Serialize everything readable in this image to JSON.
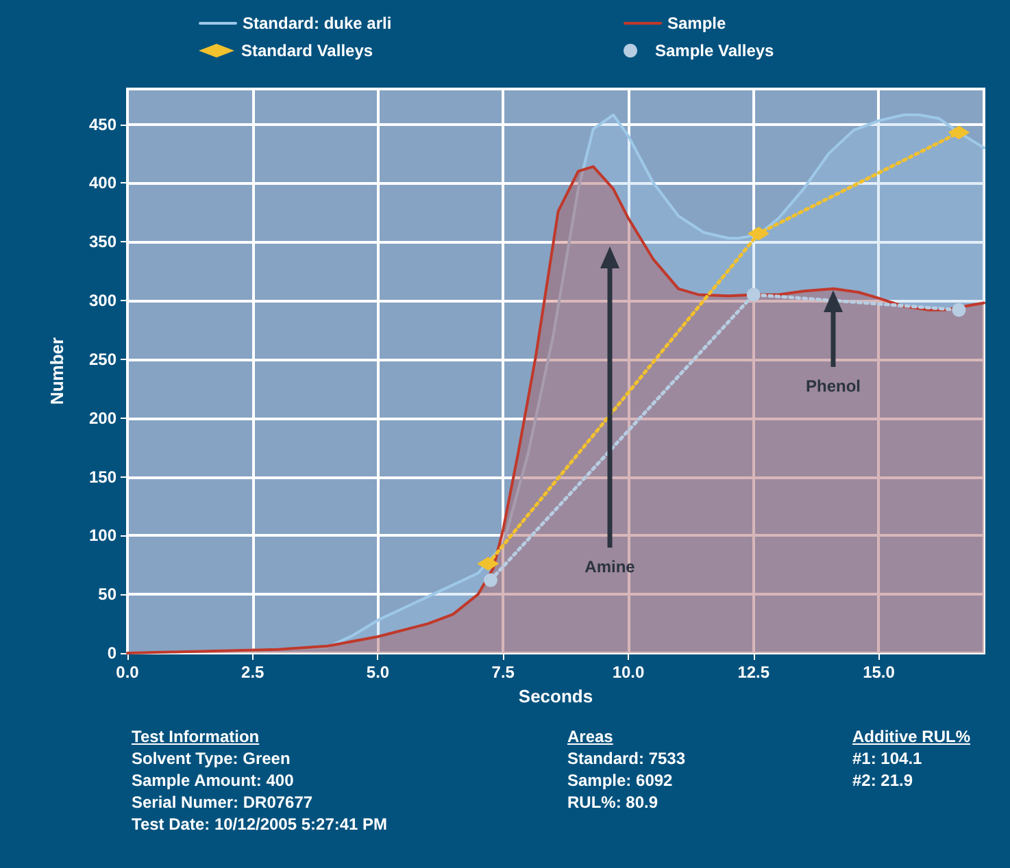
{
  "chart_data": {
    "type": "area",
    "xlabel": "Seconds",
    "ylabel": "Number",
    "xlim": [
      0,
      17.1
    ],
    "xticks": [
      {
        "value": 0,
        "label": "0.0"
      },
      {
        "value": 2.5,
        "label": "2.5"
      },
      {
        "value": 5,
        "label": "5.0"
      },
      {
        "value": 7.5,
        "label": "7.5"
      },
      {
        "value": 10,
        "label": "10.0"
      },
      {
        "value": 12.5,
        "label": "12.5"
      },
      {
        "value": 15,
        "label": "15.0"
      }
    ],
    "ylim": [
      0,
      480
    ],
    "yticks": [
      0,
      50,
      100,
      150,
      200,
      250,
      300,
      350,
      400,
      450
    ],
    "grid": true,
    "legend": "top",
    "series": [
      {
        "name": "Standard: duke arli",
        "color": "#9ec8e8",
        "x": [
          0,
          1,
          2,
          3,
          4,
          4.5,
          5,
          5.5,
          6,
          6.5,
          7,
          7.5,
          8,
          8.5,
          9,
          9.3,
          9.7,
          10,
          10.5,
          11,
          11.5,
          12,
          12.2,
          12.6,
          13,
          13.5,
          14,
          14.5,
          15,
          15.5,
          15.8,
          16.2,
          16.6,
          17.1
        ],
        "values": [
          0,
          1,
          2,
          3,
          5,
          15,
          28,
          38,
          48,
          58,
          68,
          92,
          170,
          270,
          395,
          446,
          458,
          440,
          400,
          372,
          358,
          353,
          353,
          356,
          370,
          395,
          425,
          445,
          453,
          458,
          458,
          455,
          443,
          430
        ]
      },
      {
        "name": "Sample",
        "color": "#c0392b",
        "x": [
          0,
          1,
          2,
          3,
          4,
          5,
          6,
          6.5,
          7,
          7.3,
          7.5,
          7.8,
          8.15,
          8.6,
          9,
          9.3,
          9.7,
          10,
          10.5,
          11,
          11.4,
          12,
          12.5,
          13,
          13.5,
          14.1,
          14.6,
          15,
          15.5,
          16,
          16.3,
          17.1
        ],
        "values": [
          0,
          1,
          2,
          3,
          6,
          14,
          25,
          33,
          50,
          72,
          105,
          170,
          252,
          376,
          410,
          414,
          395,
          370,
          335,
          310,
          305,
          304,
          305,
          305,
          308,
          310,
          307,
          302,
          295,
          292,
          292,
          298
        ]
      },
      {
        "name": "Standard Valleys",
        "type": "line",
        "marker": "diamond",
        "line_style": "dotted",
        "color": "#f2c12e",
        "x": [
          7.2,
          12.6,
          16.6
        ],
        "values": [
          76,
          357,
          443
        ]
      },
      {
        "name": "Sample Valleys",
        "type": "line",
        "marker": "circle",
        "line_style": "dotted",
        "color": "#b7cde2",
        "x": [
          7.25,
          12.5,
          16.6
        ],
        "values": [
          62,
          305,
          292
        ]
      }
    ],
    "annotations": [
      "Amine",
      "Phenol",
      "Test Information\nSolvent Type: Green\nSample Amount: 400\nSerial Numer: DR07677\nTest Date: 10/12/2005 5:27:41 PM",
      "Areas\nStandard: 7533\nSample: 6092\nRUL%: 80.9",
      "Additive RUL%\n#1: 104.1\n#2: 21.9"
    ]
  }
}
